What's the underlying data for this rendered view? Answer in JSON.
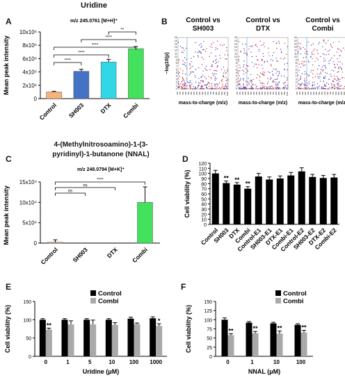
{
  "panel_labels": [
    "A",
    "B",
    "C",
    "D",
    "E",
    "F"
  ],
  "chart_data": [
    {
      "panel": "A",
      "type": "bar",
      "title": "Uridine",
      "subtitle": "m/z 245.0761  [M+H]⁺",
      "ylabel": "Mean peak intensity",
      "xlabel": "",
      "categories": [
        "Control",
        "SH003",
        "DTX",
        "Combi"
      ],
      "values": [
        1000000,
        4100000,
        5500000,
        7500000
      ],
      "errors": [
        100000,
        300000,
        400000,
        300000
      ],
      "colors": [
        "#f5b478",
        "#4472c4",
        "#33d6e6",
        "#44e15c"
      ],
      "ylim": [
        0,
        10000000
      ],
      "yticks": [
        "0",
        "2x10⁶",
        "4x10⁶",
        "6x10⁶",
        "8x10⁶",
        "10x10⁶"
      ],
      "significance": [
        {
          "pair": [
            "Control",
            "SH003"
          ],
          "label": "****"
        },
        {
          "pair": [
            "Control",
            "DTX"
          ],
          "label": "****"
        },
        {
          "pair": [
            "Control",
            "Combi"
          ],
          "label": "****"
        },
        {
          "pair": [
            "SH003",
            "Combi"
          ],
          "label": "****"
        },
        {
          "pair": [
            "DTX",
            "Combi"
          ],
          "label": "**"
        }
      ]
    },
    {
      "panel": "B",
      "type": "scatter",
      "ylabel": "−log10(p)",
      "xlabel": "mass-to-charge (m/z)",
      "plots": [
        {
          "title_lines": [
            "Control vs",
            "SH003"
          ]
        },
        {
          "title_lines": [
            "Control vs",
            "DTX"
          ]
        },
        {
          "title_lines": [
            "Control vs",
            "Combi"
          ]
        }
      ],
      "xticks": [
        "100",
        "150",
        "200",
        "250",
        "300",
        "350",
        "400",
        "450",
        "500",
        "550",
        "600",
        "650",
        "700",
        "750",
        "800",
        "850",
        "900",
        "950",
        "1000"
      ],
      "yticks": [
        "0",
        "1",
        "2",
        "3",
        "4",
        "5",
        "6",
        "7",
        "8",
        "9",
        "10",
        "11",
        "12",
        "13",
        "14",
        "15",
        "16"
      ],
      "series_colors": [
        "#d62828",
        "#2b3fc4"
      ]
    },
    {
      "panel": "C",
      "type": "bar",
      "title_lines": [
        "4-(Methylnitrosoamino)-1-(3-",
        "pyridinyl)-1-butanone (NNAL)"
      ],
      "subtitle": "m/z 248.0794  [M+K]⁺",
      "ylabel": "Mean peak intensity",
      "xlabel": "",
      "categories": [
        "Control",
        "SH003",
        "DTX",
        "Combi"
      ],
      "values": [
        2000,
        0,
        0,
        100000
      ],
      "errors": [
        6000,
        0,
        0,
        38000
      ],
      "colors": [
        "#f5b478",
        "#4472c4",
        "#33d6e6",
        "#44e15c"
      ],
      "ylim": [
        0,
        150000
      ],
      "yticks": [
        "0",
        "5x10⁴",
        "10x10⁴",
        "15x10⁴"
      ],
      "significance": [
        {
          "pair": [
            "Control",
            "SH003"
          ],
          "label": "ns"
        },
        {
          "pair": [
            "Control",
            "DTX"
          ],
          "label": "ns"
        },
        {
          "pair": [
            "Control",
            "Combi"
          ],
          "label": "****"
        }
      ]
    },
    {
      "panel": "D",
      "type": "bar",
      "ylabel": "Cell viability (%)",
      "xlabel": "",
      "categories": [
        "Control",
        "SH003",
        "DTX",
        "Combi",
        "Control-E1",
        "SH003-E1",
        "DTX-E1",
        "Combi-E1",
        "Control-E2",
        "SH003-E2",
        "DTX-E2",
        "Combi-E2"
      ],
      "values": [
        100,
        81,
        78,
        70,
        94,
        88,
        90,
        96,
        104,
        93,
        91,
        92
      ],
      "errors": [
        6,
        4,
        4,
        4,
        6,
        5,
        5,
        6,
        7,
        5,
        5,
        6
      ],
      "annotations": [
        "",
        "**",
        "**",
        "**",
        "",
        "",
        "",
        "",
        "",
        "",
        "",
        ""
      ],
      "color": "#000000",
      "ylim": [
        0,
        120
      ],
      "yticks": [
        "0",
        "10",
        "20",
        "30",
        "40",
        "50",
        "60",
        "70",
        "80",
        "90",
        "100",
        "110",
        "120"
      ]
    },
    {
      "panel": "E",
      "type": "bar",
      "ylabel": "Cell viability (%)",
      "xlabel": "Uridine (μM)",
      "categories": [
        "0",
        "1",
        "5",
        "10",
        "100",
        "1000"
      ],
      "series": [
        {
          "name": "Control",
          "values": [
            100,
            100,
            100,
            100,
            103,
            104
          ],
          "errors": [
            3,
            3,
            3,
            3,
            4,
            4
          ],
          "color": "#000000"
        },
        {
          "name": "Combi",
          "values": [
            73,
            87,
            87,
            86,
            88,
            83
          ],
          "errors": [
            4,
            10,
            12,
            6,
            3,
            6
          ],
          "color": "#a9a9a9"
        }
      ],
      "annotations": [
        "**",
        "",
        "",
        "",
        "",
        "*"
      ],
      "ylim": [
        0,
        150
      ],
      "yticks": [
        "0",
        "50",
        "100",
        "150"
      ],
      "legend": "top-right"
    },
    {
      "panel": "F",
      "type": "bar",
      "ylabel": "Cell viability (%)",
      "xlabel": "NNAL (μM)",
      "categories": [
        "0",
        "1",
        "10",
        "100"
      ],
      "series": [
        {
          "name": "Control",
          "values": [
            100,
            92,
            90,
            86
          ],
          "errors": [
            5,
            3,
            3,
            3
          ],
          "color": "#000000"
        },
        {
          "name": "Combi",
          "values": [
            58,
            63,
            62,
            65
          ],
          "errors": [
            4,
            5,
            7,
            6
          ],
          "color": "#a9a9a9"
        }
      ],
      "annotations": [
        "**",
        "**",
        "**",
        "**"
      ],
      "ylim": [
        0,
        150
      ],
      "yticks": [
        "0",
        "25",
        "50",
        "75",
        "100",
        "125",
        "150"
      ],
      "legend": "top-right"
    }
  ]
}
